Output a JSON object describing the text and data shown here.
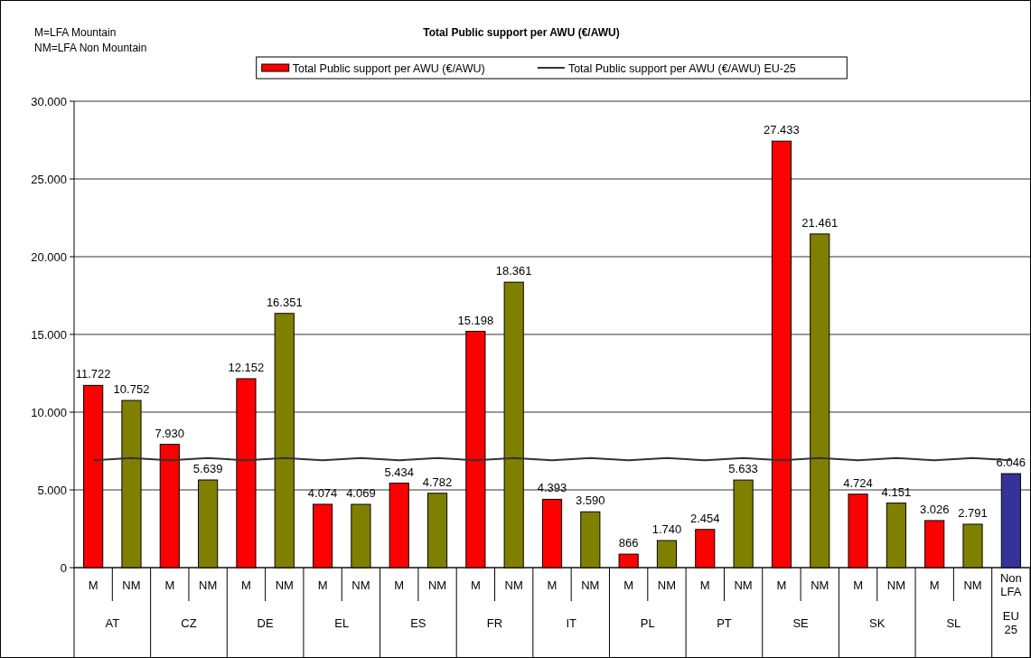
{
  "chart_data": {
    "type": "bar",
    "title": "Total Public support per AWU (€/AWU)",
    "categories": [
      "M",
      "NM",
      "M",
      "NM",
      "M",
      "NM",
      "M",
      "NM",
      "M",
      "NM",
      "M",
      "NM",
      "M",
      "NM",
      "M",
      "NM",
      "M",
      "NM",
      "M",
      "NM",
      "M",
      "NM",
      "M",
      "NM",
      "Non LFA"
    ],
    "series": [
      {
        "name": "Total Public support per AWU (€/AWU)",
        "color": "#ff0000",
        "colors": [
          "#ff0000",
          "#808000",
          "#ff0000",
          "#808000",
          "#ff0000",
          "#808000",
          "#ff0000",
          "#808000",
          "#ff0000",
          "#808000",
          "#ff0000",
          "#808000",
          "#ff0000",
          "#808000",
          "#ff0000",
          "#808000",
          "#ff0000",
          "#808000",
          "#ff0000",
          "#808000",
          "#ff0000",
          "#808000",
          "#ff0000",
          "#808000",
          "#333399"
        ],
        "values": [
          11722,
          10752,
          7930,
          5639,
          12152,
          16351,
          4074,
          4069,
          5434,
          4782,
          15198,
          18361,
          4393,
          3590,
          866,
          1740,
          2454,
          5633,
          27433,
          21461,
          4724,
          4151,
          3026,
          2791,
          6046
        ],
        "value_labels": [
          "11.722",
          "10.752",
          "7.930",
          "5.639",
          "12.152",
          "16.351",
          "4.074",
          "4.069",
          "5.434",
          "4.782",
          "15.198",
          "18.361",
          "4.393",
          "3.590",
          "866",
          "1.740",
          "2.454",
          "5.633",
          "27.433",
          "21.461",
          "4.724",
          "4.151",
          "3.026",
          "2.791",
          "6.046"
        ]
      },
      {
        "name": "Total Public support per AWU (€/AWU) EU-25",
        "type": "line",
        "color": "#333333",
        "values": [
          6900,
          7050,
          6900,
          7050,
          6900,
          7050,
          6900,
          7050,
          6900,
          7050,
          6900,
          7050,
          6900,
          7050,
          6900,
          7050,
          6900,
          7050,
          6900,
          7050,
          6900,
          7050,
          6900,
          7050,
          6900
        ]
      }
    ],
    "ylim": [
      0,
      30000
    ],
    "yticks": [
      0,
      {
        "value": 5000,
        "label": "5.000"
      },
      {
        "value": 10000,
        "label": "10.000"
      },
      {
        "value": 15000,
        "label": "15.000"
      },
      {
        "value": 20000,
        "label": "20.000"
      },
      {
        "value": 25000,
        "label": "25.000"
      },
      {
        "value": 30000,
        "label": "30.000"
      }
    ],
    "grid": "y",
    "legend": "top",
    "marker": "none",
    "line_style": "solid",
    "annotations": [
      "M=LFA Mountain",
      "NM=LFA Non Mountain",
      "AT",
      "CZ",
      "DE",
      "EL",
      "ES",
      "FR",
      "IT",
      "PL",
      "PT",
      "SE",
      "SK",
      "SL",
      "EU 25"
    ]
  }
}
